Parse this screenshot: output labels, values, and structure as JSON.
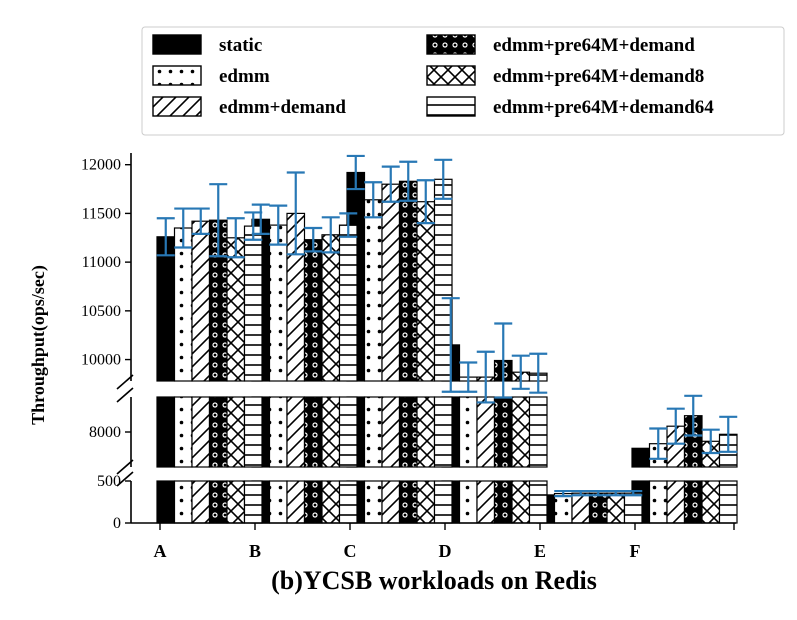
{
  "chart_data": {
    "type": "bar",
    "title": "(b)YCSB workloads on Redis",
    "ylabel": "Throughput(ops/sec)",
    "xlabel": "",
    "categories": [
      "A",
      "B",
      "C",
      "D",
      "E",
      "F"
    ],
    "axis_break": true,
    "y_segments": [
      {
        "range": [
          0,
          500
        ],
        "ticks": [
          0,
          500
        ]
      },
      {
        "range": [
          7400,
          8600
        ],
        "ticks": [
          8000
        ]
      },
      {
        "range": [
          9780,
          12120
        ],
        "ticks": [
          10000,
          10500,
          11000,
          11500,
          12000
        ]
      }
    ],
    "legend_position": "top",
    "series": [
      {
        "name": "static",
        "pattern": "solid",
        "values": [
          11260,
          11440,
          11920,
          10150,
          335,
          7720
        ],
        "err": [
          190,
          150,
          170,
          480,
          0,
          0
        ]
      },
      {
        "name": "edmm",
        "pattern": "dots",
        "values": [
          11350,
          11380,
          11640,
          9820,
          350,
          7800
        ],
        "err": [
          200,
          200,
          180,
          150,
          30,
          260
        ]
      },
      {
        "name": "edmm+demand",
        "pattern": "diagonal",
        "values": [
          11420,
          11500,
          11800,
          9820,
          355,
          8100
        ],
        "err": [
          130,
          420,
          180,
          260,
          25,
          300
        ]
      },
      {
        "name": "edmm+pre64M+demand",
        "pattern": "circles",
        "values": [
          11430,
          11230,
          11830,
          9990,
          355,
          8280
        ],
        "err": [
          370,
          120,
          200,
          380,
          25,
          340
        ]
      },
      {
        "name": "edmm+pre64M+demand8",
        "pattern": "crosshatch",
        "values": [
          11250,
          11280,
          11620,
          9870,
          355,
          7840
        ],
        "err": [
          200,
          180,
          220,
          170,
          25,
          200
        ]
      },
      {
        "name": "edmm+pre64M+demand64",
        "pattern": "horizontal",
        "values": [
          11370,
          11380,
          11850,
          9860,
          355,
          7960
        ],
        "err": [
          140,
          120,
          200,
          200,
          25,
          300
        ]
      }
    ],
    "error_bar_color": "#2878b5"
  }
}
